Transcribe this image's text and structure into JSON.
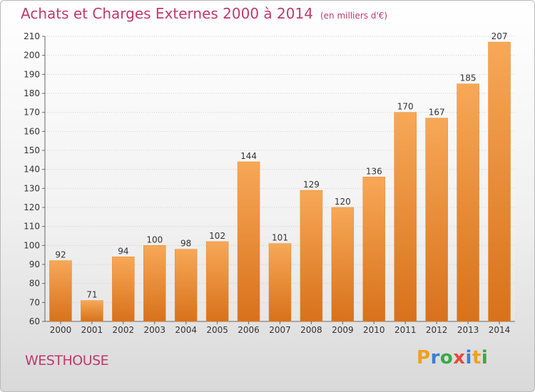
{
  "title": "Achats et Charges Externes 2000 à 2014",
  "unit_note": "(en milliers d'€)",
  "location": "WESTHOUSE",
  "logo": {
    "letters": [
      "P",
      "r",
      "o",
      "x",
      "i",
      "t",
      "i"
    ],
    "colors": [
      "#f0a020",
      "#3a7fd5",
      "#3aa84a",
      "#e64a3c",
      "#3a7fd5",
      "#f0a020",
      "#3aa84a"
    ]
  },
  "colors": {
    "accent": "#c0396b",
    "bar": "#f0943c",
    "bar_dark": "#d8711b"
  },
  "chart_data": {
    "type": "bar",
    "title": "Achats et Charges Externes 2000 à 2014",
    "subtitle": "(en milliers d'€)",
    "xlabel": "",
    "ylabel": "",
    "categories": [
      "2000",
      "2001",
      "2002",
      "2003",
      "2004",
      "2005",
      "2006",
      "2007",
      "2008",
      "2009",
      "2010",
      "2011",
      "2012",
      "2013",
      "2014"
    ],
    "values": [
      92,
      71,
      94,
      100,
      98,
      102,
      144,
      101,
      129,
      120,
      136,
      170,
      167,
      185,
      207
    ],
    "ylim": [
      60,
      210
    ],
    "yticks": [
      60,
      70,
      80,
      90,
      100,
      110,
      120,
      130,
      140,
      150,
      160,
      170,
      180,
      190,
      200,
      210
    ],
    "grid": true,
    "legend": "none"
  }
}
